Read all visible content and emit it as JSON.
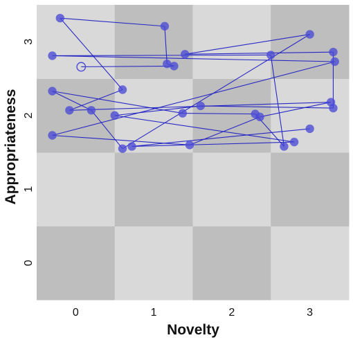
{
  "chart_data": {
    "type": "scatter",
    "title": "",
    "xlabel": "Novelty",
    "ylabel": "Appropriateness",
    "xlim": [
      -0.5,
      3.5
    ],
    "ylim": [
      -0.5,
      3.5
    ],
    "x_ticks": [
      0,
      1,
      2,
      3
    ],
    "y_ticks": [
      0,
      1,
      2,
      3
    ],
    "background": "checkerboard",
    "colors": {
      "cell_light": "#d9d9d9",
      "cell_dark": "#bebebe",
      "point": "#4a4ad6",
      "line": "#1f1fc4"
    },
    "path_start_marker": "hollow-circle",
    "series": [
      {
        "style": "connected-points",
        "points": [
          [
            0.07,
            2.66
          ],
          [
            1.26,
            2.67
          ],
          [
            1.17,
            2.7
          ],
          [
            1.14,
            3.21
          ],
          [
            -0.2,
            3.32
          ],
          [
            0.6,
            2.35
          ],
          [
            -0.08,
            2.07
          ],
          [
            3.27,
            2.18
          ],
          [
            2.36,
            1.98
          ],
          [
            1.46,
            1.6
          ],
          [
            -0.3,
            1.73
          ],
          [
            3.32,
            2.73
          ],
          [
            -0.3,
            2.81
          ],
          [
            2.5,
            2.82
          ],
          [
            2.67,
            1.58
          ],
          [
            2.3,
            2.02
          ],
          [
            1.37,
            2.03
          ],
          [
            -0.3,
            2.33
          ],
          [
            0.2,
            2.07
          ],
          [
            0.6,
            1.55
          ],
          [
            3.0,
            3.1
          ],
          [
            1.4,
            2.83
          ],
          [
            3.3,
            2.86
          ],
          [
            3.3,
            2.1
          ],
          [
            1.6,
            2.13
          ],
          [
            0.5,
            2.0
          ],
          [
            2.8,
            1.64
          ],
          [
            0.72,
            1.58
          ],
          [
            3.0,
            1.82
          ]
        ]
      }
    ]
  }
}
